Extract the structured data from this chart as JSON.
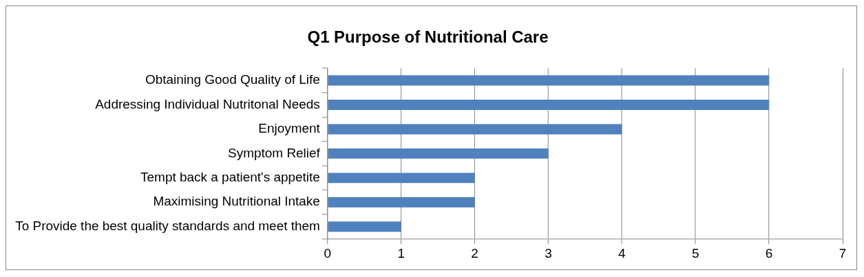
{
  "chart_data": {
    "type": "bar",
    "orientation": "horizontal",
    "title": "Q1 Purpose of Nutritional Care",
    "categories": [
      "Obtaining Good Quality of Life",
      "Addressing Individual Nutritonal Needs",
      "Enjoyment",
      "Symptom Relief",
      "Tempt back a patient's appetite",
      "Maximising Nutritional Intake",
      "To Provide the best quality standards and meet them"
    ],
    "values": [
      6,
      6,
      4,
      3,
      2,
      2,
      1
    ],
    "color": "#4f81bd",
    "xlim": [
      0,
      7
    ],
    "xticks": [
      0,
      1,
      2,
      3,
      4,
      5,
      6,
      7
    ],
    "grid": "x",
    "legend": false
  }
}
